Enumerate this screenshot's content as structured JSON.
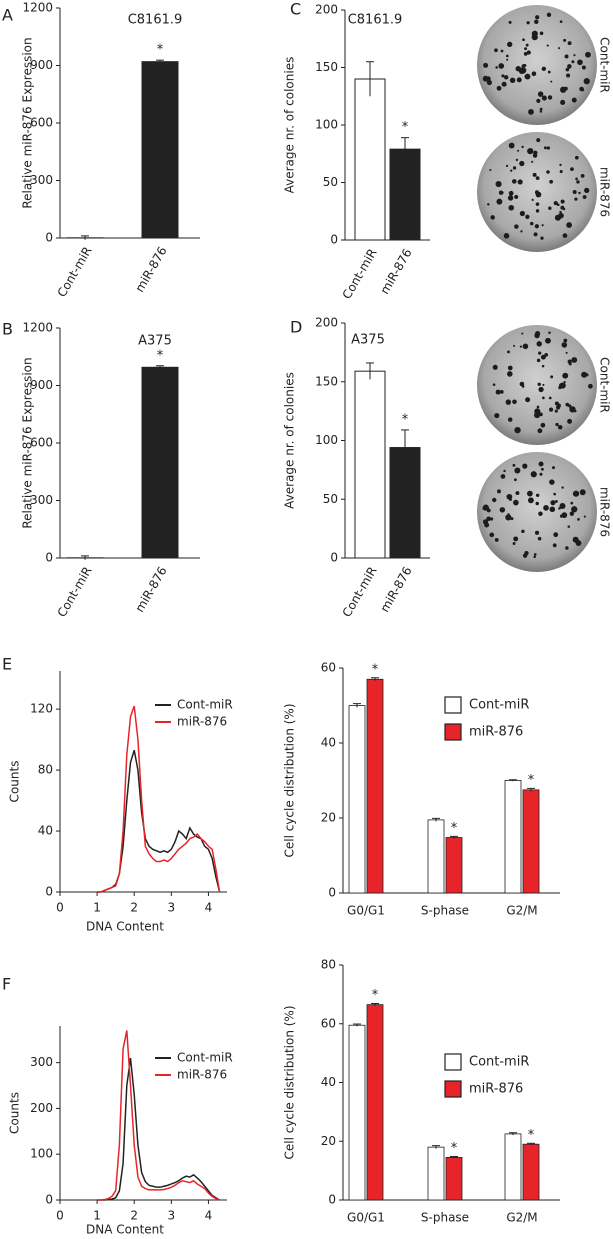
{
  "chart_data": [
    {
      "type": "bar",
      "label": "A",
      "title": "C8161.9",
      "ylabel": "Relative miR-876 Expression",
      "categories": [
        "Cont-miR",
        "miR-876"
      ],
      "values": [
        1,
        920
      ],
      "errors": [
        10,
        8
      ],
      "colors": [
        "#ffffff",
        "#222222"
      ],
      "significance": [
        null,
        "*"
      ],
      "ylim": [
        0,
        1200
      ],
      "yticks": [
        0,
        300,
        600,
        900,
        1200
      ]
    },
    {
      "type": "bar",
      "label": "B",
      "title": "A375",
      "ylabel": "Relative miR-876 Expression",
      "categories": [
        "Cont-miR",
        "miR-876"
      ],
      "values": [
        1,
        995
      ],
      "errors": [
        10,
        8
      ],
      "colors": [
        "#ffffff",
        "#222222"
      ],
      "significance": [
        null,
        "*"
      ],
      "ylim": [
        0,
        1200
      ],
      "yticks": [
        0,
        300,
        600,
        900,
        1200
      ]
    },
    {
      "type": "bar",
      "label": "C",
      "title": "C8161.9",
      "ylabel": "Average nr. of colonies",
      "categories": [
        "Cont-miR",
        "miR-876"
      ],
      "values": [
        140,
        79
      ],
      "errors": [
        15,
        10
      ],
      "colors": [
        "#ffffff",
        "#222222"
      ],
      "significance": [
        null,
        "*"
      ],
      "ylim": [
        0,
        200
      ],
      "yticks": [
        0,
        50,
        100,
        150,
        200
      ],
      "image_labels": [
        "Cont-miR",
        "miR-876"
      ]
    },
    {
      "type": "bar",
      "label": "D",
      "title": "A375",
      "ylabel": "Average nr. of colonies",
      "categories": [
        "Cont-miR",
        "miR-876"
      ],
      "values": [
        159,
        94
      ],
      "errors": [
        7,
        15
      ],
      "colors": [
        "#ffffff",
        "#222222"
      ],
      "significance": [
        null,
        "*"
      ],
      "ylim": [
        0,
        200
      ],
      "yticks": [
        0,
        50,
        100,
        150,
        200
      ],
      "image_labels": [
        "Cont-miR",
        "miR-876"
      ]
    },
    {
      "type": "line",
      "label": "E",
      "xlabel": "DNA Content",
      "ylabel": "Counts",
      "legend": "upper right",
      "x": [
        1.0,
        1.1,
        1.2,
        1.3,
        1.4,
        1.5,
        1.6,
        1.7,
        1.8,
        1.9,
        2.0,
        2.1,
        2.2,
        2.3,
        2.4,
        2.5,
        2.6,
        2.7,
        2.8,
        2.9,
        3.0,
        3.1,
        3.2,
        3.3,
        3.4,
        3.5,
        3.6,
        3.7,
        3.8,
        3.9,
        4.0,
        4.1,
        4.2,
        4.3
      ],
      "series": [
        {
          "name": "Cont-miR",
          "color": "#222222",
          "values": [
            0,
            0,
            1,
            2,
            3,
            5,
            12,
            30,
            60,
            85,
            93,
            80,
            52,
            35,
            30,
            28,
            27,
            26,
            27,
            26,
            28,
            33,
            40,
            38,
            35,
            42,
            38,
            36,
            35,
            30,
            28,
            22,
            10,
            0
          ]
        },
        {
          "name": "miR-876",
          "color": "#e8242b",
          "values": [
            0,
            0,
            1,
            2,
            3,
            4,
            12,
            40,
            90,
            115,
            122,
            100,
            60,
            30,
            25,
            22,
            20,
            20,
            21,
            20,
            22,
            25,
            28,
            30,
            32,
            35,
            36,
            38,
            35,
            33,
            30,
            28,
            15,
            0
          ]
        }
      ],
      "xlim": [
        0,
        4.5
      ],
      "xticks": [
        0,
        1,
        2,
        3,
        4
      ],
      "ylim": [
        0,
        145
      ],
      "yticks": [
        0,
        40,
        80,
        120
      ]
    },
    {
      "type": "grouped_bar",
      "ylabel": "Cell cycle distribution (%)",
      "legend": "upper right",
      "categories": [
        "G0/G1",
        "S-phase",
        "G2/M"
      ],
      "series": [
        {
          "name": "Cont-miR",
          "color": "#ffffff",
          "values": [
            50,
            19.5,
            30
          ],
          "errors": [
            0.5,
            0.4,
            0.2
          ],
          "significance": [
            null,
            null,
            null
          ]
        },
        {
          "name": "miR-876",
          "color": "#e8242b",
          "values": [
            57,
            14.8,
            27.5
          ],
          "errors": [
            0.4,
            0.3,
            0.4
          ],
          "significance": [
            "*",
            "*",
            "*"
          ]
        }
      ],
      "ylim": [
        0,
        60
      ],
      "yticks": [
        0,
        20,
        40,
        60
      ]
    },
    {
      "type": "line",
      "label": "F",
      "xlabel": "DNA Content",
      "ylabel": "Counts",
      "legend": "upper right",
      "x": [
        1.0,
        1.1,
        1.2,
        1.3,
        1.4,
        1.5,
        1.6,
        1.7,
        1.8,
        1.9,
        2.0,
        2.1,
        2.2,
        2.3,
        2.4,
        2.5,
        2.6,
        2.7,
        2.8,
        2.9,
        3.0,
        3.1,
        3.2,
        3.3,
        3.4,
        3.5,
        3.6,
        3.7,
        3.8,
        3.9,
        4.0,
        4.1,
        4.2,
        4.3
      ],
      "series": [
        {
          "name": "Cont-miR",
          "color": "#222222",
          "values": [
            0,
            0,
            0,
            1,
            2,
            5,
            20,
            80,
            250,
            310,
            230,
            120,
            60,
            40,
            32,
            30,
            28,
            28,
            30,
            32,
            35,
            38,
            42,
            48,
            52,
            50,
            55,
            48,
            40,
            30,
            20,
            10,
            5,
            0
          ]
        },
        {
          "name": "miR-876",
          "color": "#e8242b",
          "values": [
            0,
            0,
            1,
            3,
            8,
            20,
            120,
            330,
            370,
            250,
            120,
            50,
            30,
            25,
            22,
            22,
            22,
            22,
            23,
            25,
            28,
            32,
            38,
            42,
            40,
            38,
            42,
            35,
            30,
            25,
            15,
            8,
            3,
            0
          ]
        }
      ],
      "xlim": [
        0,
        4.5
      ],
      "xticks": [
        0,
        1,
        2,
        3,
        4
      ],
      "ylim": [
        0,
        380
      ],
      "yticks": [
        0,
        100,
        200,
        300
      ]
    },
    {
      "type": "grouped_bar",
      "ylabel": "Cell cycle distribution (%)",
      "legend": "upper right",
      "categories": [
        "G0/G1",
        "S-phase",
        "G2/M"
      ],
      "series": [
        {
          "name": "Cont-miR",
          "color": "#ffffff",
          "values": [
            59.5,
            18,
            22.5
          ],
          "errors": [
            0.4,
            0.5,
            0.4
          ],
          "significance": [
            null,
            null,
            null
          ]
        },
        {
          "name": "miR-876",
          "color": "#e8242b",
          "values": [
            66.5,
            14.5,
            19
          ],
          "errors": [
            0.4,
            0.3,
            0.3
          ],
          "significance": [
            "*",
            "*",
            "*"
          ]
        }
      ],
      "ylim": [
        0,
        80
      ],
      "yticks": [
        0,
        20,
        40,
        60,
        80
      ]
    }
  ]
}
